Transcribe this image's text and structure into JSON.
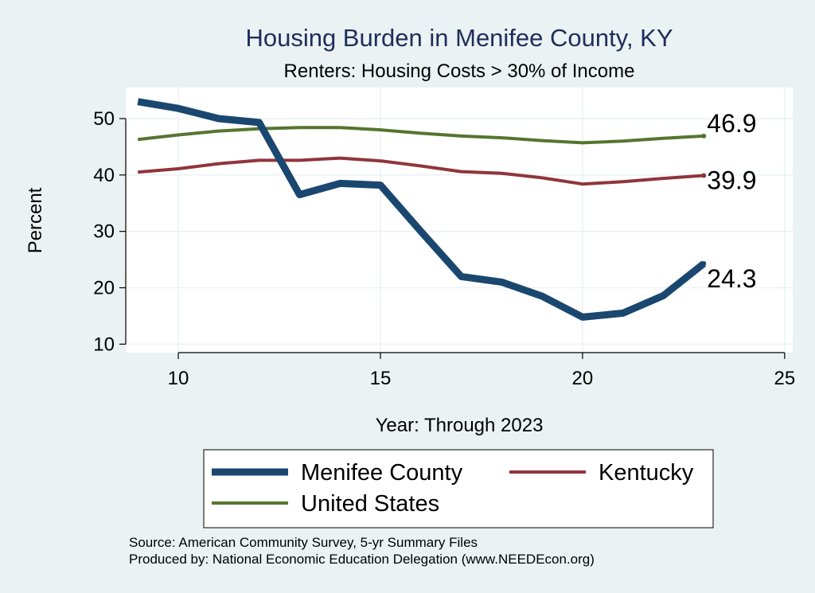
{
  "chart_data": {
    "type": "line",
    "title": "Housing Burden in Menifee County, KY",
    "subtitle": "Renters: Housing Costs > 30% of Income",
    "xlabel": "Year: Through 2023",
    "ylabel": "Percent",
    "xlim": [
      8.7,
      25.2
    ],
    "ylim": [
      8.5,
      55.5
    ],
    "xticks": [
      10,
      15,
      20,
      25
    ],
    "yticks": [
      10,
      20,
      30,
      40,
      50
    ],
    "grid": true,
    "legend_position": "bottom",
    "x": [
      9,
      10,
      11,
      12,
      13,
      14,
      15,
      16,
      17,
      18,
      19,
      20,
      21,
      22,
      23
    ],
    "series": [
      {
        "name": "Menifee County",
        "color": "#1a476f",
        "values": [
          53.0,
          51.8,
          50.0,
          49.3,
          36.5,
          38.5,
          38.2,
          30.0,
          22.0,
          21.0,
          18.5,
          14.8,
          15.5,
          18.6,
          24.3
        ],
        "end_label": "24.3"
      },
      {
        "name": "Kentucky",
        "color": "#90353b",
        "values": [
          40.5,
          41.1,
          42.0,
          42.6,
          42.6,
          43.0,
          42.5,
          41.6,
          40.6,
          40.3,
          39.5,
          38.4,
          38.8,
          39.4,
          39.9
        ],
        "end_label": "39.9"
      },
      {
        "name": "United States",
        "color": "#55752f",
        "values": [
          46.3,
          47.1,
          47.8,
          48.2,
          48.4,
          48.4,
          48.0,
          47.4,
          46.9,
          46.6,
          46.1,
          45.7,
          46.0,
          46.5,
          46.9
        ],
        "end_label": "46.9"
      }
    ]
  },
  "source_note": "Source: American Community Survey, 5-yr Summary Files",
  "producer_note": "Produced by: National Economic Education Delegation (www.NEEDEcon.org)"
}
